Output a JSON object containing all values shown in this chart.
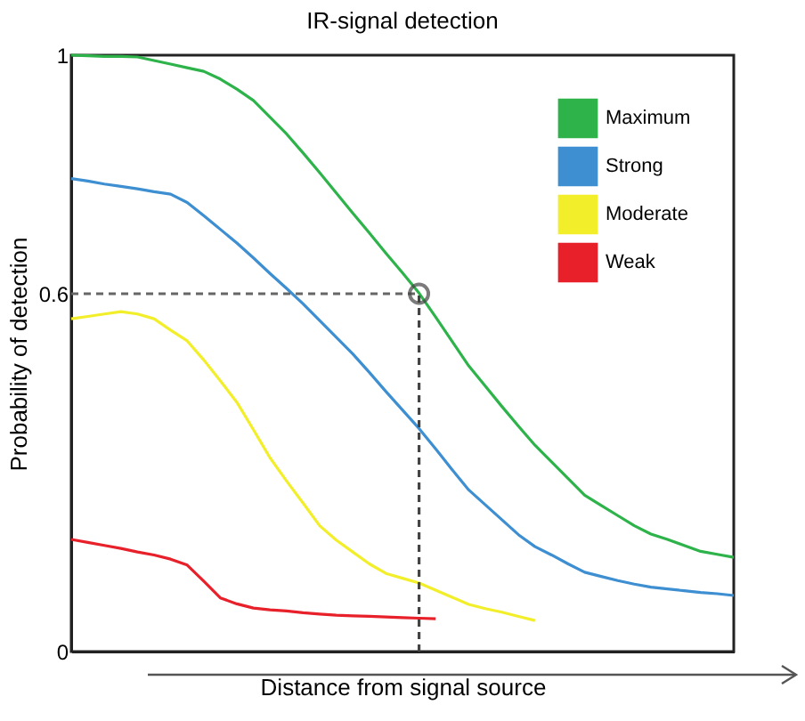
{
  "chart_data": {
    "type": "line",
    "title": "IR-signal detection",
    "xlabel": "Distance from signal source",
    "ylabel": "Probability of detection",
    "categories": [
      null,
      null,
      null,
      null,
      null,
      null,
      null,
      null,
      null,
      null,
      null,
      null,
      null,
      null,
      null,
      null,
      null,
      null,
      null,
      null,
      null,
      null,
      null,
      null,
      null,
      null,
      null,
      null,
      null,
      null,
      null,
      null,
      null,
      null,
      null,
      null,
      null,
      null,
      null,
      null,
      null
    ],
    "ylim": [
      0,
      1
    ],
    "yticks": [
      0,
      0.6,
      1
    ],
    "grid": false,
    "legend": "top right",
    "series": [
      {
        "name": "Maximum",
        "color": "#2db34a",
        "values": [
          1,
          0.999,
          0.998,
          0.998,
          0.997,
          0.991,
          0.985,
          0.979,
          0.973,
          0.96,
          0.943,
          0.924,
          0.896,
          0.868,
          0.836,
          0.803,
          0.769,
          0.735,
          0.702,
          0.668,
          0.635,
          0.601,
          0.561,
          0.52,
          0.479,
          0.445,
          0.411,
          0.378,
          0.346,
          0.318,
          0.29,
          0.262,
          0.245,
          0.228,
          0.211,
          0.197,
          0.188,
          0.178,
          0.168,
          0.163,
          0.158
        ]
      },
      {
        "name": "Strong",
        "color": "#3d8fd1",
        "values": [
          0.793,
          0.789,
          0.784,
          0.78,
          0.776,
          0.771,
          0.767,
          0.753,
          0.731,
          0.708,
          0.685,
          0.66,
          0.634,
          0.609,
          0.583,
          0.555,
          0.527,
          0.499,
          0.468,
          0.436,
          0.405,
          0.374,
          0.34,
          0.305,
          0.271,
          0.246,
          0.221,
          0.196,
          0.176,
          0.162,
          0.147,
          0.133,
          0.126,
          0.119,
          0.113,
          0.108,
          0.105,
          0.102,
          0.099,
          0.097,
          0.094
        ]
      },
      {
        "name": "Moderate",
        "color": "#f2ef2a",
        "values": [
          0.558,
          0.562,
          0.566,
          0.57,
          0.566,
          0.558,
          0.539,
          0.521,
          0.489,
          0.454,
          0.418,
          0.372,
          0.325,
          0.286,
          0.249,
          0.211,
          0.187,
          0.167,
          0.147,
          0.131,
          0.123,
          0.115,
          0.103,
          0.091,
          0.079,
          0.072,
          0.066,
          0.059,
          0.052,
          null,
          null,
          null,
          null,
          null,
          null,
          null,
          null,
          null,
          null,
          null,
          null
        ]
      },
      {
        "name": "Weak",
        "color": "#e8202a",
        "values": [
          0.188,
          0.183,
          0.178,
          0.173,
          0.167,
          0.162,
          0.155,
          0.145,
          0.118,
          0.09,
          0.08,
          0.073,
          0.07,
          0.068,
          0.065,
          0.063,
          0.061,
          0.06,
          0.059,
          0.058,
          0.057,
          0.056,
          0.055,
          null,
          null,
          null,
          null,
          null,
          null,
          null,
          null,
          null,
          null,
          null,
          null,
          null,
          null,
          null,
          null,
          null,
          null
        ]
      },
      {
        "type": "line",
        "color": "#666666",
        "line_style": "dashed",
        "values": [
          0.6,
          0.6,
          0.6,
          0.6,
          0.6,
          0.6,
          0.6,
          0.6,
          0.6,
          0.6,
          0.6,
          0.6,
          0.6,
          0.6,
          0.6,
          0.6,
          0.6,
          0.6,
          0.6,
          0.6,
          0.6,
          0.6,
          null,
          null,
          null,
          null,
          null,
          null,
          null,
          null,
          null,
          null,
          null,
          null,
          null,
          null,
          null,
          null,
          null,
          null,
          null
        ]
      },
      {
        "type": "scatter",
        "marker": "circle",
        "color": "#444444",
        "values": [
          null,
          null,
          null,
          null,
          null,
          null,
          null,
          null,
          null,
          null,
          null,
          null,
          null,
          null,
          null,
          null,
          null,
          null,
          null,
          null,
          null,
          0.6,
          null,
          null,
          null,
          null,
          null,
          null,
          null,
          null,
          null,
          null,
          null,
          null,
          null,
          null,
          null,
          null,
          null,
          null,
          null
        ],
        "errors": [
          null,
          null,
          null,
          null,
          null,
          null,
          null,
          null,
          null,
          null,
          null,
          null,
          null,
          null,
          null,
          null,
          null,
          null,
          null,
          null,
          null,
          [
            0,
            0.6
          ],
          null,
          null,
          null,
          null,
          null,
          null,
          null,
          null,
          null,
          null,
          null,
          null,
          null,
          null,
          null,
          null,
          null,
          null,
          null
        ]
      }
    ]
  }
}
